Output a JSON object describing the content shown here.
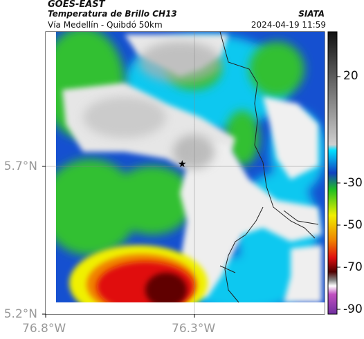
{
  "header": {
    "satellite": "GOES-EAST",
    "product": "Temperatura de Brillo CH13",
    "region": "Vía Medellín - Quibdó 50km",
    "org": "SIATA",
    "datetime": "2024-04-19 11:59"
  },
  "axes": {
    "lat_labels": [
      "5.7°N",
      "5.2°N"
    ],
    "lon_labels": [
      "76.8°W",
      "76.3°W"
    ]
  },
  "colorbar": {
    "labels": [
      "20",
      "-30",
      "-50",
      "-70",
      "-90"
    ]
  },
  "colors": {
    "land_white": "#f2f2f2",
    "cloud_gray": "#b8b8b8",
    "cyan": "#00d0f0",
    "blue": "#1040c0",
    "green": "#20c020",
    "yellow": "#f0f000",
    "red": "#e01010",
    "darkred": "#700000",
    "magenta": "#c050c0"
  },
  "marker": {
    "symbol": "★"
  }
}
